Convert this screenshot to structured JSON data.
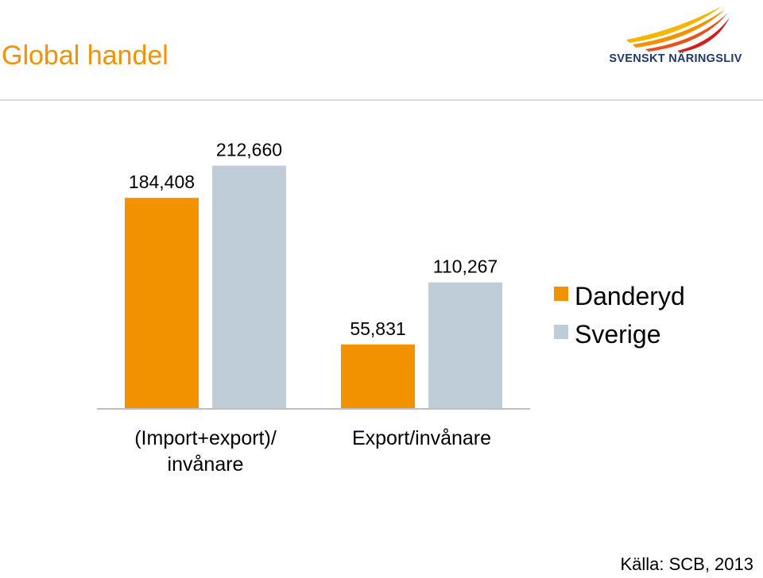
{
  "header": {
    "title": "Global handel",
    "logo_text": "SVENSKT NÄRINGSLIV"
  },
  "footer": {
    "source": "Källa: SCB, 2013"
  },
  "colors": {
    "title": "#f39200",
    "logo_text": "#1d3a6b",
    "rule": "#d6dde4",
    "axis": "#bfbfbf",
    "logo_flame": [
      "#f7b500",
      "#f39200",
      "#e8501c",
      "#d0201c"
    ]
  },
  "chart_data": {
    "type": "bar",
    "categories": [
      [
        "(Import+export)/",
        "invånare"
      ],
      [
        "Export/invånare"
      ]
    ],
    "series": [
      {
        "name": "Danderyd",
        "color": "#f39200",
        "values": [
          184408,
          55831
        ],
        "labels": [
          "184,408",
          "55,831"
        ]
      },
      {
        "name": "Sverige",
        "color": "#bfcdd9",
        "values": [
          212660,
          110267
        ],
        "labels": [
          "212,660",
          "110,267"
        ]
      }
    ],
    "title": "",
    "xlabel": "",
    "ylabel": "",
    "ylim": [
      0,
      250000
    ],
    "grid": false,
    "legend": "right"
  }
}
